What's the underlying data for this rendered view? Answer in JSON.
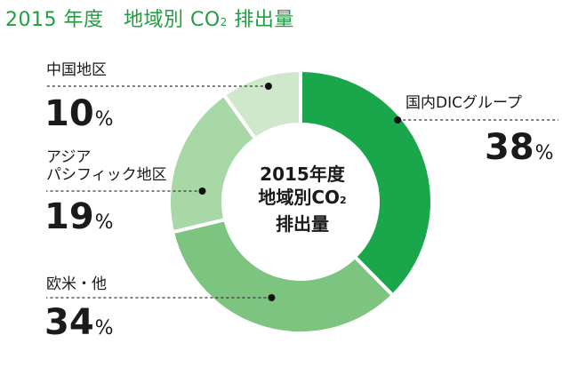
{
  "title": {
    "main": "2015 年度　地域別 CO",
    "sub": "2",
    "tail": " 排出量"
  },
  "center": {
    "line1": "2015年度",
    "line2_main": "地域別CO",
    "line2_sub": "2",
    "line3": "排出量"
  },
  "percent_unit": "%",
  "colors": {
    "title": "#1f9f3f",
    "leader": "#333333"
  },
  "chart_data": {
    "type": "pie",
    "donut": true,
    "title": "2015 年度　地域別 CO2 排出量",
    "series": [
      {
        "label": "国内DICグループ",
        "value": 38,
        "color": "#1aa64a"
      },
      {
        "label": "欧米・他",
        "value": 34,
        "color": "#7cc47f"
      },
      {
        "label": "アジア\nパシフィック地区",
        "value": 19,
        "color": "#a9d8a7"
      },
      {
        "label": "中国地区",
        "value": 10,
        "color": "#cfe8cc"
      }
    ]
  }
}
